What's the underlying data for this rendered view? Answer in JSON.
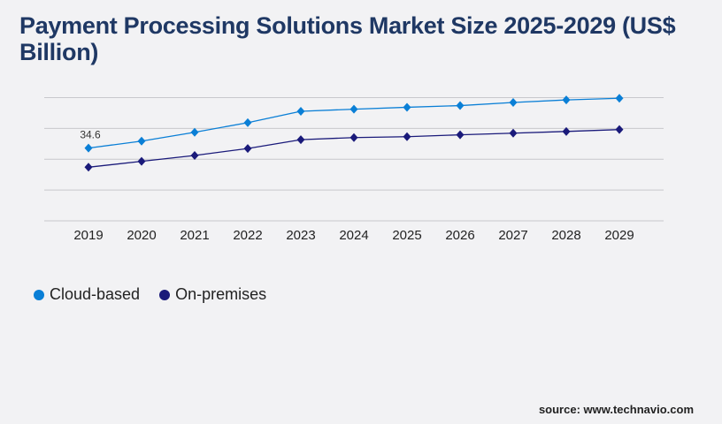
{
  "chart_data": {
    "type": "line",
    "title": "Payment Processing Solutions Market Size 2025-2029 (US$ Billion)",
    "xlabel": "",
    "ylabel": "",
    "categories": [
      "2019",
      "2020",
      "2021",
      "2022",
      "2023",
      "2024",
      "2025",
      "2026",
      "2027",
      "2028",
      "2029"
    ],
    "series": [
      {
        "name": "Cloud-based",
        "color": "#0a7fd6",
        "values": [
          34.6,
          37.9,
          42.1,
          46.7,
          52.1,
          53.1,
          54.0,
          54.8,
          56.3,
          57.5,
          58.3
        ]
      },
      {
        "name": "On-premises",
        "color": "#1a1a7a",
        "values": [
          25.5,
          28.3,
          31.1,
          34.4,
          38.6,
          39.6,
          40.0,
          40.9,
          41.7,
          42.5,
          43.4
        ]
      }
    ],
    "data_labels": [
      {
        "series": 0,
        "index": 0,
        "text": "34.6"
      }
    ],
    "ylim": [
      0,
      58.6
    ],
    "gridlines": 5,
    "grid": true,
    "y_tick_labels_shown": false,
    "legend_position": "bottom-left"
  },
  "source": "source: www.technavio.com"
}
